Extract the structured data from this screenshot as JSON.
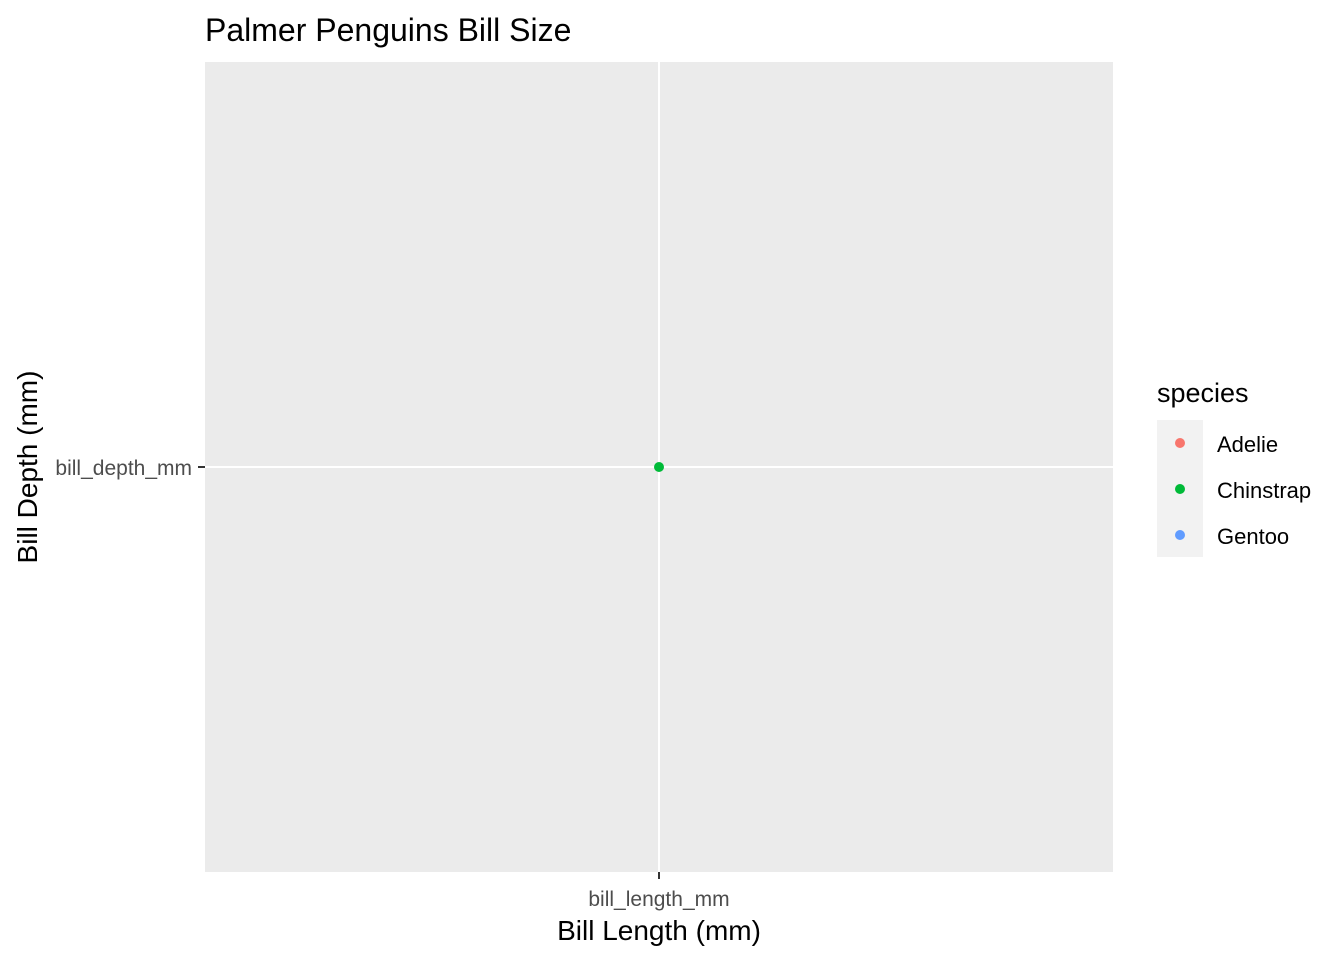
{
  "chart_data": {
    "type": "scatter",
    "title": "Palmer Penguins Bill Size",
    "xlabel": "Bill Length (mm)",
    "ylabel": "Bill Depth (mm)",
    "x_categories": [
      "bill_length_mm"
    ],
    "y_categories": [
      "bill_depth_mm"
    ],
    "points": [
      {
        "x": "bill_length_mm",
        "y": "bill_depth_mm",
        "species": "Chinstrap"
      }
    ],
    "grid": true,
    "legend": {
      "title": "species",
      "placement": "right",
      "entries": [
        {
          "label": "Adelie",
          "color": "#F8766D"
        },
        {
          "label": "Chinstrap",
          "color": "#00BA38"
        },
        {
          "label": "Gentoo",
          "color": "#619CFF"
        }
      ]
    },
    "panel_color": "#EBEBEB",
    "grid_color": "#FFFFFF"
  }
}
